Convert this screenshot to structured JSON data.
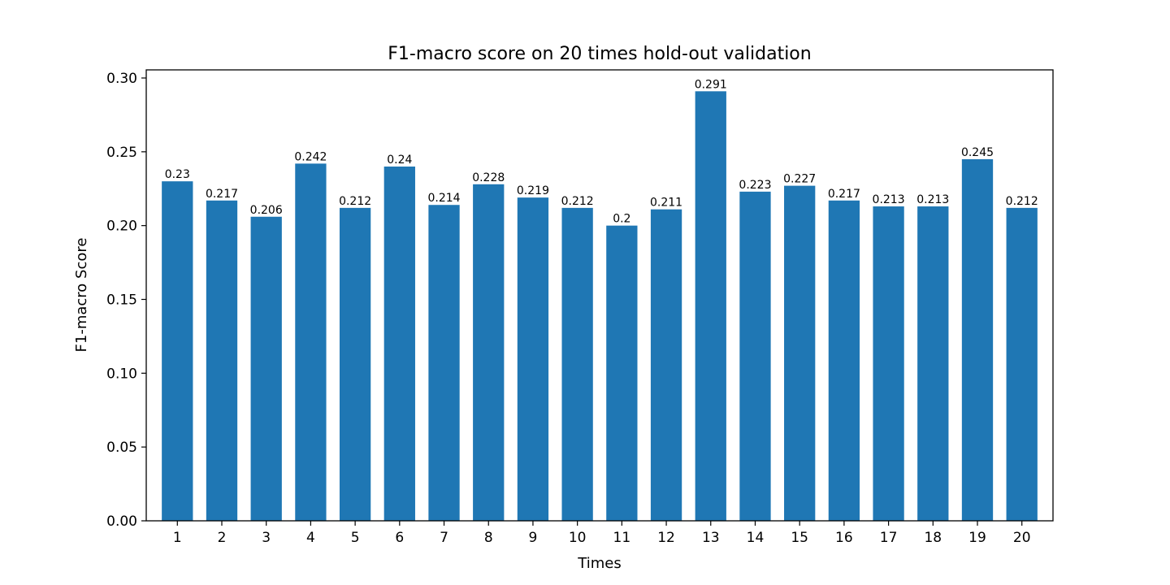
{
  "chart_data": {
    "type": "bar",
    "title": "F1-macro score on 20 times hold-out validation",
    "xlabel": "Times",
    "ylabel": "F1-macro Score",
    "categories": [
      "1",
      "2",
      "3",
      "4",
      "5",
      "6",
      "7",
      "8",
      "9",
      "10",
      "11",
      "12",
      "13",
      "14",
      "15",
      "16",
      "17",
      "18",
      "19",
      "20"
    ],
    "values": [
      0.23,
      0.217,
      0.206,
      0.242,
      0.212,
      0.24,
      0.214,
      0.228,
      0.219,
      0.212,
      0.2,
      0.211,
      0.291,
      0.223,
      0.227,
      0.217,
      0.213,
      0.213,
      0.245,
      0.212
    ],
    "data_labels": [
      "0.23",
      "0.217",
      "0.206",
      "0.242",
      "0.212",
      "0.24",
      "0.214",
      "0.228",
      "0.219",
      "0.212",
      "0.2",
      "0.211",
      "0.291",
      "0.223",
      "0.227",
      "0.217",
      "0.213",
      "0.213",
      "0.245",
      "0.212"
    ],
    "ylim": [
      0,
      0.3055
    ],
    "yticks": [
      0.0,
      0.05,
      0.1,
      0.15,
      0.2,
      0.25,
      0.3
    ],
    "ytick_labels": [
      "0.00",
      "0.05",
      "0.10",
      "0.15",
      "0.20",
      "0.25",
      "0.30"
    ],
    "grid": false,
    "legend": "none",
    "bar_color": "#1f77b4"
  }
}
